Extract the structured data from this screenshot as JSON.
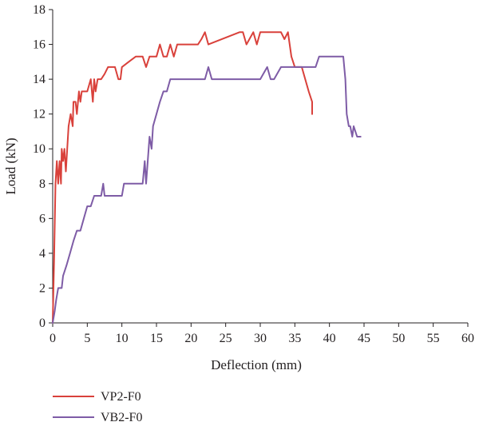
{
  "chart_data": {
    "type": "line",
    "title": "",
    "xlabel": "Deflection (mm)",
    "ylabel": "Load (kN)",
    "xlim": [
      0,
      60
    ],
    "ylim": [
      0,
      18
    ],
    "xticks": [
      "0",
      "5",
      "10",
      "15",
      "20",
      "25",
      "30",
      "35",
      "40",
      "45",
      "50",
      "55",
      "60"
    ],
    "yticks": [
      "0",
      "2",
      "4",
      "6",
      "8",
      "10",
      "12",
      "14",
      "16",
      "18"
    ],
    "grid": false,
    "legend_position": "bottom-left",
    "series": [
      {
        "name": "VP2-F0",
        "color": "#d9413b",
        "x": [
          0,
          0.2,
          0.4,
          0.6,
          0.8,
          1.0,
          1.2,
          1.3,
          1.5,
          1.7,
          1.9,
          2.1,
          2.3,
          2.6,
          2.9,
          3.0,
          3.3,
          3.5,
          3.8,
          4.0,
          4.2,
          4.5,
          5.0,
          5.5,
          5.8,
          6.0,
          6.2,
          6.5,
          7.0,
          7.5,
          8.0,
          8.5,
          9.0,
          9.5,
          9.8,
          10.0,
          11.0,
          12.0,
          13.0,
          13.5,
          14.0,
          15.0,
          15.5,
          16.0,
          16.5,
          17.0,
          17.5,
          18.0,
          21.0,
          21.5,
          22.0,
          22.5,
          27.0,
          27.5,
          28.0,
          29.0,
          29.5,
          30.0,
          30.5,
          33.0,
          33.5,
          34.0,
          34.5,
          35.0,
          36.0,
          37.0,
          37.5,
          37.5
        ],
        "y": [
          0,
          3.5,
          8,
          9.3,
          8,
          9.3,
          8,
          10,
          9.3,
          10,
          8.7,
          10,
          11.3,
          12,
          11.3,
          12.7,
          12.7,
          12,
          13.3,
          12.7,
          13.3,
          13.3,
          13.3,
          14,
          12.7,
          14,
          13.3,
          14,
          14,
          14.3,
          14.7,
          14.7,
          14.7,
          14,
          14,
          14.7,
          15,
          15.3,
          15.3,
          14.7,
          15.3,
          15.3,
          16,
          15.3,
          15.3,
          16,
          15.3,
          16,
          16,
          16.3,
          16.7,
          16,
          16.7,
          16.7,
          16,
          16.7,
          16,
          16.7,
          16.7,
          16.7,
          16.3,
          16.7,
          15.3,
          14.7,
          14.7,
          13.3,
          12.7,
          12
        ]
      },
      {
        "name": "VB2-F0",
        "color": "#7e5ca6",
        "x": [
          0,
          0.3,
          0.5,
          0.8,
          1.0,
          1.3,
          1.5,
          2.0,
          2.5,
          3.0,
          3.5,
          4.0,
          4.5,
          5.0,
          5.5,
          6.0,
          6.5,
          7.0,
          7.3,
          7.5,
          8.0,
          9.0,
          10.0,
          10.3,
          11.0,
          12.0,
          12.5,
          13.0,
          13.3,
          13.5,
          14.0,
          14.3,
          14.5,
          15.0,
          15.5,
          16.0,
          16.5,
          17.0,
          18.0,
          20.0,
          22.0,
          22.5,
          23.0,
          25.0,
          30.0,
          31.0,
          31.5,
          32.0,
          33.0,
          33.5,
          34.0,
          35.0,
          36.0,
          38.0,
          38.5,
          39.0,
          40.0,
          41.0,
          42.0,
          42.3,
          42.5,
          42.8,
          43.0,
          43.3,
          43.5,
          44.0,
          44.5
        ],
        "y": [
          0,
          0.7,
          1.3,
          2,
          2,
          2,
          2.7,
          3.3,
          4,
          4.7,
          5.3,
          5.3,
          6,
          6.7,
          6.7,
          7.3,
          7.3,
          7.3,
          8,
          7.3,
          7.3,
          7.3,
          7.3,
          8,
          8,
          8,
          8,
          8,
          9.3,
          8,
          10.7,
          10,
          11.3,
          12,
          12.7,
          13.3,
          13.3,
          14,
          14,
          14,
          14,
          14.7,
          14,
          14,
          14,
          14.7,
          14,
          14,
          14.7,
          14.7,
          14.7,
          14.7,
          14.7,
          14.7,
          15.3,
          15.3,
          15.3,
          15.3,
          15.3,
          14,
          12,
          11.3,
          11.3,
          10.7,
          11.3,
          10.7,
          10.7
        ]
      }
    ]
  }
}
